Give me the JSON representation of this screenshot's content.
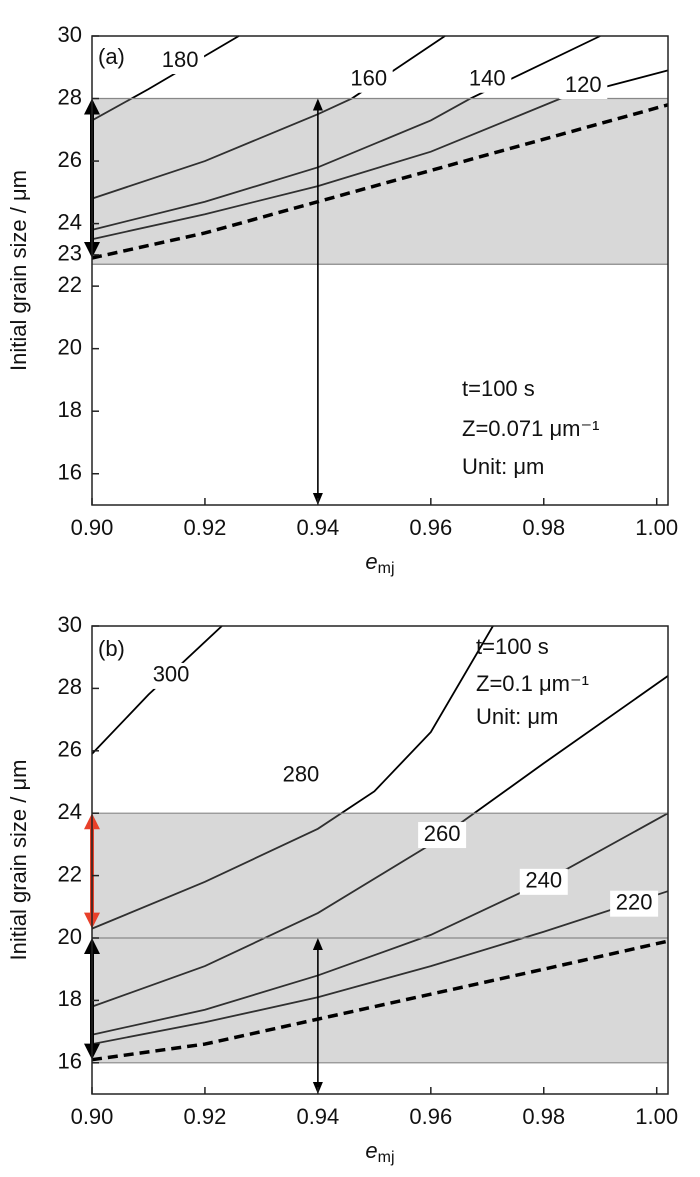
{
  "chart_data": [
    {
      "type": "line",
      "panel_label": "(a)",
      "ylabel": "Initial grain size / μm",
      "xlabel": "e",
      "xlabel_sub": "mj",
      "xlim": [
        0.9,
        1.002
      ],
      "ylim": [
        15,
        30
      ],
      "xticks": [
        {
          "value": 0.9,
          "label": "0.90"
        },
        0.92,
        0.94,
        0.96,
        0.98,
        {
          "value": 1.0,
          "label": "1.00"
        }
      ],
      "yticks": [
        16,
        18,
        20,
        22,
        23,
        24,
        26,
        28,
        30
      ],
      "band": [
        22.7,
        28
      ],
      "annotations": [
        "t=100 s",
        "Z=0.071 μm⁻¹",
        "Unit: μm"
      ],
      "series": [
        {
          "name": "180",
          "color": "#000000",
          "x": [
            0.9,
            0.91,
            0.926
          ],
          "values": [
            27.3,
            28.3,
            30
          ]
        },
        {
          "name": "160",
          "color": "#000000",
          "x": [
            0.9,
            0.92,
            0.94,
            0.946,
            0.9625
          ],
          "values": [
            24.8,
            26.0,
            27.5,
            28,
            30
          ]
        },
        {
          "name": "140",
          "color": "#000000",
          "x": [
            0.9,
            0.92,
            0.94,
            0.96,
            0.967,
            0.99
          ],
          "values": [
            23.8,
            24.7,
            25.8,
            27.3,
            28,
            30
          ]
        },
        {
          "name": "120",
          "color": "#000000",
          "x": [
            0.9,
            0.92,
            0.94,
            0.96,
            0.983,
            1.002
          ],
          "values": [
            23.5,
            24.3,
            25.2,
            26.3,
            28,
            28.9
          ]
        },
        {
          "color": "#000000",
          "dash": true,
          "x": [
            0.9,
            0.92,
            0.94,
            0.96,
            0.98,
            1.002
          ],
          "values": [
            22.9,
            23.7,
            24.7,
            25.7,
            26.7,
            27.8
          ]
        }
      ],
      "arrows": [
        {
          "x": 0.9,
          "y": [
            22.9,
            28
          ],
          "color": "#000000",
          "bold": true
        },
        {
          "x": 0.94,
          "y": [
            15,
            28
          ],
          "color": "#000000",
          "bold": false
        }
      ]
    },
    {
      "type": "line",
      "panel_label": "(b)",
      "ylabel": "Initial grain size / μm",
      "xlabel": "e",
      "xlabel_sub": "mj",
      "xlim": [
        0.9,
        1.002
      ],
      "ylim": [
        15,
        30
      ],
      "xticks": [
        {
          "value": 0.9,
          "label": "0.90"
        },
        0.92,
        0.94,
        0.96,
        0.98,
        {
          "value": 1.0,
          "label": "1.00"
        }
      ],
      "yticks": [
        16,
        18,
        20,
        22,
        24,
        26,
        28,
        30
      ],
      "band": [
        16,
        24
      ],
      "hline": 20,
      "annotations": [
        "t=100 s",
        "Z=0.1 μm⁻¹",
        "Unit: μm"
      ],
      "series": [
        {
          "name": "300",
          "color": "#000000",
          "x": [
            0.9,
            0.91,
            0.923
          ],
          "values": [
            25.9,
            27.8,
            30
          ]
        },
        {
          "name": "280",
          "color": "#000000",
          "x": [
            0.9,
            0.92,
            0.94,
            0.95,
            0.96,
            0.971
          ],
          "values": [
            20.3,
            21.8,
            23.5,
            24.7,
            26.6,
            30
          ]
        },
        {
          "name": "260",
          "color": "#000000",
          "x": [
            0.9,
            0.92,
            0.94,
            0.96,
            0.98,
            1.002
          ],
          "values": [
            17.8,
            19.1,
            20.8,
            23.0,
            25.6,
            28.4
          ]
        },
        {
          "name": "240",
          "color": "#000000",
          "x": [
            0.9,
            0.92,
            0.94,
            0.96,
            0.98,
            1.002
          ],
          "values": [
            16.9,
            17.7,
            18.8,
            20.1,
            21.8,
            24.0
          ]
        },
        {
          "name": "220",
          "color": "#000000",
          "x": [
            0.9,
            0.92,
            0.94,
            0.96,
            0.98,
            1.002
          ],
          "values": [
            16.6,
            17.3,
            18.1,
            19.1,
            20.2,
            21.5
          ]
        },
        {
          "color": "#000000",
          "dash": true,
          "x": [
            0.9,
            0.92,
            0.94,
            0.96,
            0.98,
            1.002
          ],
          "values": [
            16.1,
            16.6,
            17.4,
            18.2,
            19.0,
            19.9
          ]
        }
      ],
      "arrows": [
        {
          "x": 0.9,
          "y": [
            16.1,
            20
          ],
          "color": "#000000",
          "bold": true
        },
        {
          "x": 0.9,
          "y": [
            20.3,
            24
          ],
          "color": "#e8402a",
          "bold": true
        },
        {
          "x": 0.94,
          "y": [
            15,
            20
          ],
          "color": "#000000",
          "bold": false
        }
      ]
    }
  ]
}
